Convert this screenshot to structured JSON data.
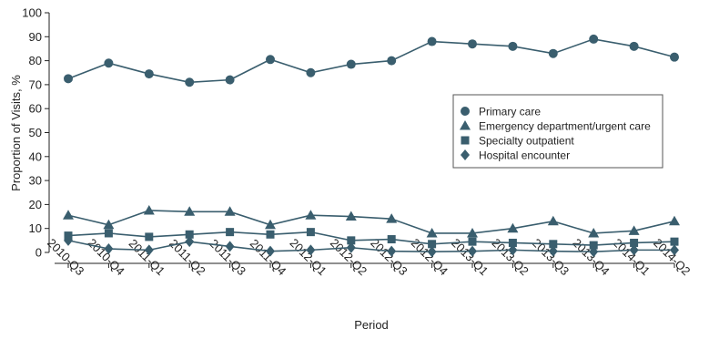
{
  "chart_data": {
    "type": "line",
    "xlabel": "Period",
    "ylabel": "Proportion of Visits, %",
    "ylim": [
      0,
      100
    ],
    "yticks": [
      0,
      10,
      20,
      30,
      40,
      50,
      60,
      70,
      80,
      90,
      100
    ],
    "grid": false,
    "legend_position": "center-right",
    "categories": [
      "2010-Q3",
      "2010-Q4",
      "2011-Q1",
      "2011-Q2",
      "2011-Q3",
      "2011-Q4",
      "2012-Q1",
      "2012-Q2",
      "2012-Q3",
      "2012-Q4",
      "2013-Q1",
      "2013-Q2",
      "2013-Q3",
      "2013-Q4",
      "2014-Q1",
      "2014-Q2"
    ],
    "series": [
      {
        "name": "Primary care",
        "marker": "circle",
        "color": "#3a5e6e",
        "values": [
          72.5,
          79,
          74.5,
          71,
          72,
          80.5,
          75,
          78.5,
          80,
          88,
          87,
          86,
          83,
          89,
          86,
          81.5
        ]
      },
      {
        "name": "Emergency department/urgent care",
        "marker": "triangle",
        "color": "#3a5e6e",
        "values": [
          15.5,
          11.5,
          17.5,
          17,
          17,
          11.5,
          15.5,
          15,
          14,
          8,
          8,
          10,
          13,
          8,
          9,
          13
        ]
      },
      {
        "name": "Specialty outpatient",
        "marker": "square",
        "color": "#3a5e6e",
        "values": [
          7,
          8,
          6.5,
          7.5,
          8.5,
          7.5,
          8.5,
          5,
          5.5,
          3.5,
          4.5,
          4,
          3.5,
          3,
          4,
          4.5
        ]
      },
      {
        "name": "Hospital encounter",
        "marker": "diamond",
        "color": "#3a5e6e",
        "values": [
          5,
          1.5,
          1,
          4.5,
          2.5,
          0.5,
          1,
          2,
          0.5,
          0.3,
          0.5,
          1,
          0.5,
          0.3,
          1,
          1
        ]
      }
    ]
  }
}
